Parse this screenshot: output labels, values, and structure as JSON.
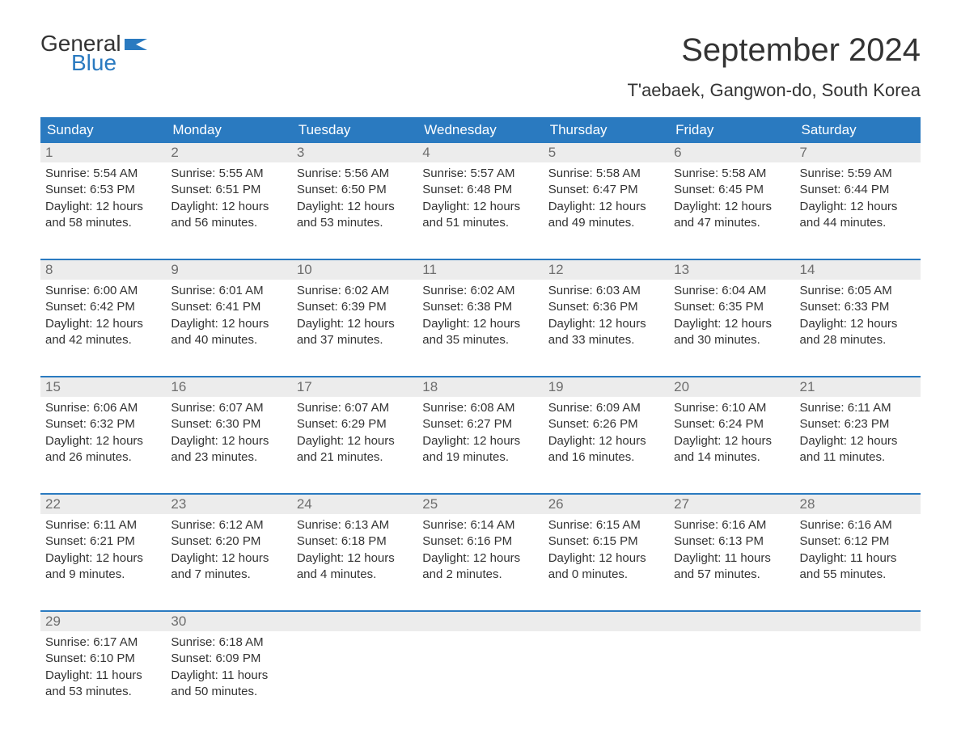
{
  "brand": {
    "word1": "General",
    "word2": "Blue"
  },
  "title": "September 2024",
  "location": "T'aebaek, Gangwon-do, South Korea",
  "colors": {
    "header_bg": "#2a7ac0",
    "header_text": "#ffffff",
    "row_rule": "#2a7ac0",
    "daynum_bg": "#ececec",
    "daynum_text": "#6e6e6e",
    "body_text": "#333333",
    "brand_blue": "#2a7ac0",
    "background": "#ffffff"
  },
  "fonts": {
    "title_pt": 40,
    "location_pt": 22,
    "dayname_pt": 17,
    "daynum_pt": 17,
    "body_pt": 15
  },
  "daynames": [
    "Sunday",
    "Monday",
    "Tuesday",
    "Wednesday",
    "Thursday",
    "Friday",
    "Saturday"
  ],
  "weeks": [
    [
      {
        "n": "1",
        "sunrise": "Sunrise: 5:54 AM",
        "sunset": "Sunset: 6:53 PM",
        "d1": "Daylight: 12 hours",
        "d2": "and 58 minutes."
      },
      {
        "n": "2",
        "sunrise": "Sunrise: 5:55 AM",
        "sunset": "Sunset: 6:51 PM",
        "d1": "Daylight: 12 hours",
        "d2": "and 56 minutes."
      },
      {
        "n": "3",
        "sunrise": "Sunrise: 5:56 AM",
        "sunset": "Sunset: 6:50 PM",
        "d1": "Daylight: 12 hours",
        "d2": "and 53 minutes."
      },
      {
        "n": "4",
        "sunrise": "Sunrise: 5:57 AM",
        "sunset": "Sunset: 6:48 PM",
        "d1": "Daylight: 12 hours",
        "d2": "and 51 minutes."
      },
      {
        "n": "5",
        "sunrise": "Sunrise: 5:58 AM",
        "sunset": "Sunset: 6:47 PM",
        "d1": "Daylight: 12 hours",
        "d2": "and 49 minutes."
      },
      {
        "n": "6",
        "sunrise": "Sunrise: 5:58 AM",
        "sunset": "Sunset: 6:45 PM",
        "d1": "Daylight: 12 hours",
        "d2": "and 47 minutes."
      },
      {
        "n": "7",
        "sunrise": "Sunrise: 5:59 AM",
        "sunset": "Sunset: 6:44 PM",
        "d1": "Daylight: 12 hours",
        "d2": "and 44 minutes."
      }
    ],
    [
      {
        "n": "8",
        "sunrise": "Sunrise: 6:00 AM",
        "sunset": "Sunset: 6:42 PM",
        "d1": "Daylight: 12 hours",
        "d2": "and 42 minutes."
      },
      {
        "n": "9",
        "sunrise": "Sunrise: 6:01 AM",
        "sunset": "Sunset: 6:41 PM",
        "d1": "Daylight: 12 hours",
        "d2": "and 40 minutes."
      },
      {
        "n": "10",
        "sunrise": "Sunrise: 6:02 AM",
        "sunset": "Sunset: 6:39 PM",
        "d1": "Daylight: 12 hours",
        "d2": "and 37 minutes."
      },
      {
        "n": "11",
        "sunrise": "Sunrise: 6:02 AM",
        "sunset": "Sunset: 6:38 PM",
        "d1": "Daylight: 12 hours",
        "d2": "and 35 minutes."
      },
      {
        "n": "12",
        "sunrise": "Sunrise: 6:03 AM",
        "sunset": "Sunset: 6:36 PM",
        "d1": "Daylight: 12 hours",
        "d2": "and 33 minutes."
      },
      {
        "n": "13",
        "sunrise": "Sunrise: 6:04 AM",
        "sunset": "Sunset: 6:35 PM",
        "d1": "Daylight: 12 hours",
        "d2": "and 30 minutes."
      },
      {
        "n": "14",
        "sunrise": "Sunrise: 6:05 AM",
        "sunset": "Sunset: 6:33 PM",
        "d1": "Daylight: 12 hours",
        "d2": "and 28 minutes."
      }
    ],
    [
      {
        "n": "15",
        "sunrise": "Sunrise: 6:06 AM",
        "sunset": "Sunset: 6:32 PM",
        "d1": "Daylight: 12 hours",
        "d2": "and 26 minutes."
      },
      {
        "n": "16",
        "sunrise": "Sunrise: 6:07 AM",
        "sunset": "Sunset: 6:30 PM",
        "d1": "Daylight: 12 hours",
        "d2": "and 23 minutes."
      },
      {
        "n": "17",
        "sunrise": "Sunrise: 6:07 AM",
        "sunset": "Sunset: 6:29 PM",
        "d1": "Daylight: 12 hours",
        "d2": "and 21 minutes."
      },
      {
        "n": "18",
        "sunrise": "Sunrise: 6:08 AM",
        "sunset": "Sunset: 6:27 PM",
        "d1": "Daylight: 12 hours",
        "d2": "and 19 minutes."
      },
      {
        "n": "19",
        "sunrise": "Sunrise: 6:09 AM",
        "sunset": "Sunset: 6:26 PM",
        "d1": "Daylight: 12 hours",
        "d2": "and 16 minutes."
      },
      {
        "n": "20",
        "sunrise": "Sunrise: 6:10 AM",
        "sunset": "Sunset: 6:24 PM",
        "d1": "Daylight: 12 hours",
        "d2": "and 14 minutes."
      },
      {
        "n": "21",
        "sunrise": "Sunrise: 6:11 AM",
        "sunset": "Sunset: 6:23 PM",
        "d1": "Daylight: 12 hours",
        "d2": "and 11 minutes."
      }
    ],
    [
      {
        "n": "22",
        "sunrise": "Sunrise: 6:11 AM",
        "sunset": "Sunset: 6:21 PM",
        "d1": "Daylight: 12 hours",
        "d2": "and 9 minutes."
      },
      {
        "n": "23",
        "sunrise": "Sunrise: 6:12 AM",
        "sunset": "Sunset: 6:20 PM",
        "d1": "Daylight: 12 hours",
        "d2": "and 7 minutes."
      },
      {
        "n": "24",
        "sunrise": "Sunrise: 6:13 AM",
        "sunset": "Sunset: 6:18 PM",
        "d1": "Daylight: 12 hours",
        "d2": "and 4 minutes."
      },
      {
        "n": "25",
        "sunrise": "Sunrise: 6:14 AM",
        "sunset": "Sunset: 6:16 PM",
        "d1": "Daylight: 12 hours",
        "d2": "and 2 minutes."
      },
      {
        "n": "26",
        "sunrise": "Sunrise: 6:15 AM",
        "sunset": "Sunset: 6:15 PM",
        "d1": "Daylight: 12 hours",
        "d2": "and 0 minutes."
      },
      {
        "n": "27",
        "sunrise": "Sunrise: 6:16 AM",
        "sunset": "Sunset: 6:13 PM",
        "d1": "Daylight: 11 hours",
        "d2": "and 57 minutes."
      },
      {
        "n": "28",
        "sunrise": "Sunrise: 6:16 AM",
        "sunset": "Sunset: 6:12 PM",
        "d1": "Daylight: 11 hours",
        "d2": "and 55 minutes."
      }
    ],
    [
      {
        "n": "29",
        "sunrise": "Sunrise: 6:17 AM",
        "sunset": "Sunset: 6:10 PM",
        "d1": "Daylight: 11 hours",
        "d2": "and 53 minutes."
      },
      {
        "n": "30",
        "sunrise": "Sunrise: 6:18 AM",
        "sunset": "Sunset: 6:09 PM",
        "d1": "Daylight: 11 hours",
        "d2": "and 50 minutes."
      },
      null,
      null,
      null,
      null,
      null
    ]
  ]
}
